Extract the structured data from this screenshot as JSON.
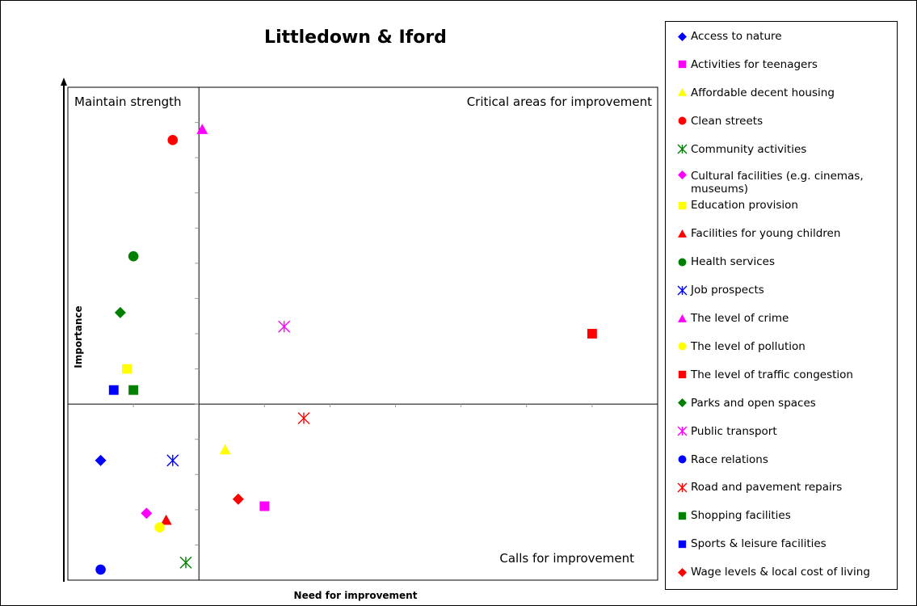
{
  "chart_data": {
    "type": "scatter",
    "title": "Littledown & Iford",
    "xlabel": "Need for improvement",
    "ylabel": "Importance",
    "xlim": [
      0,
      9
    ],
    "ylim": [
      0,
      14
    ],
    "x_divider": 2,
    "y_divider": 5,
    "grid": false,
    "legend_position": "right",
    "quadrant_labels": {
      "top_left": "Maintain strength",
      "top_right": "Critical areas for improvement",
      "bottom_right": "Calls for improvement"
    },
    "series": [
      {
        "name": "Access to nature",
        "marker": "diamond",
        "color": "#0000ff",
        "points": [
          [
            0.5,
            3.4
          ]
        ]
      },
      {
        "name": "Activities for teenagers",
        "marker": "square",
        "color": "#ff00ff",
        "points": [
          [
            3.0,
            2.1
          ]
        ]
      },
      {
        "name": "Affordable decent housing",
        "marker": "triangle",
        "color": "#ffff00",
        "points": [
          [
            2.4,
            3.7
          ]
        ]
      },
      {
        "name": "Clean streets",
        "marker": "circle",
        "color": "#ff0000",
        "points": [
          [
            1.6,
            12.5
          ]
        ]
      },
      {
        "name": "Community activities",
        "marker": "star",
        "color": "#008000",
        "points": [
          [
            1.8,
            0.5
          ]
        ]
      },
      {
        "name": "Cultural facilities (e.g. cinemas, museums)",
        "marker": "diamond",
        "color": "#ff00ff",
        "points": [
          [
            1.2,
            1.9
          ]
        ]
      },
      {
        "name": "Education provision",
        "marker": "square",
        "color": "#ffff00",
        "points": [
          [
            0.9,
            6.0
          ]
        ]
      },
      {
        "name": "Facilities for young children",
        "marker": "triangle",
        "color": "#ff0000",
        "points": [
          [
            1.5,
            1.7
          ]
        ]
      },
      {
        "name": "Health services",
        "marker": "circle",
        "color": "#008000",
        "points": [
          [
            1.0,
            9.2
          ]
        ]
      },
      {
        "name": "Job prospects",
        "marker": "star",
        "color": "#0000ff",
        "points": [
          [
            1.6,
            3.4
          ]
        ]
      },
      {
        "name": "The level of crime",
        "marker": "triangle",
        "color": "#ff00ff",
        "points": [
          [
            2.05,
            12.8
          ]
        ]
      },
      {
        "name": "The level of pollution",
        "marker": "circle",
        "color": "#ffff00",
        "points": [
          [
            1.4,
            1.5
          ]
        ]
      },
      {
        "name": "The level of traffic congestion",
        "marker": "square",
        "color": "#ff0000",
        "points": [
          [
            8.0,
            7.0
          ]
        ]
      },
      {
        "name": "Parks and open spaces",
        "marker": "diamond",
        "color": "#008000",
        "points": [
          [
            0.8,
            7.6
          ]
        ]
      },
      {
        "name": "Public transport",
        "marker": "star",
        "color": "#ff00ff",
        "points": [
          [
            3.3,
            7.2
          ]
        ]
      },
      {
        "name": "Race relations",
        "marker": "circle",
        "color": "#0000ff",
        "points": [
          [
            0.5,
            0.3
          ]
        ]
      },
      {
        "name": "Road and pavement repairs",
        "marker": "star",
        "color": "#ff0000",
        "points": [
          [
            3.6,
            4.6
          ]
        ]
      },
      {
        "name": "Shopping facilities",
        "marker": "square",
        "color": "#008000",
        "points": [
          [
            1.0,
            5.4
          ]
        ]
      },
      {
        "name": "Sports & leisure facilities",
        "marker": "square",
        "color": "#0000ff",
        "points": [
          [
            0.7,
            5.4
          ]
        ]
      },
      {
        "name": "Wage levels & local cost of living",
        "marker": "diamond",
        "color": "#ff0000",
        "points": [
          [
            2.6,
            2.3
          ]
        ]
      }
    ]
  }
}
